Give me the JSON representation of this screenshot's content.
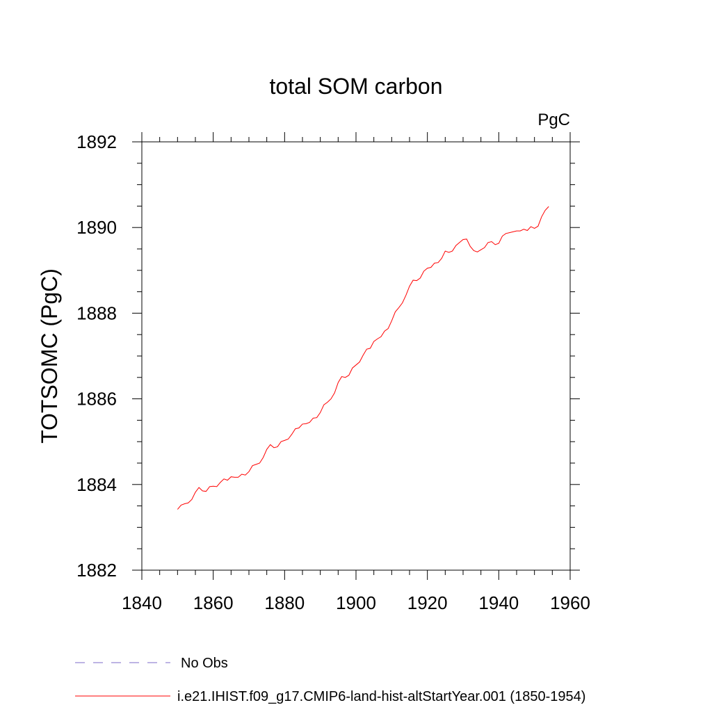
{
  "chart_data": {
    "type": "line",
    "title": "total SOM carbon",
    "units": "PgC",
    "ylabel": "TOTSOMC  (PgC)",
    "xlabel": "",
    "xlim": [
      1840,
      1960
    ],
    "ylim": [
      1882,
      1892
    ],
    "x_ticks": [
      1840,
      1860,
      1880,
      1900,
      1920,
      1940,
      1960
    ],
    "y_ticks": [
      1882,
      1884,
      1886,
      1888,
      1890,
      1892
    ],
    "x_tick_labels": [
      "1840",
      "1860",
      "1880",
      "1900",
      "1920",
      "1940",
      "1960"
    ],
    "y_tick_labels": [
      "1882",
      "1884",
      "1886",
      "1888",
      "1890",
      "1892"
    ],
    "grid": false,
    "legend_position": "bottom-left",
    "series": [
      {
        "name": "No Obs",
        "color": "#7b68c8",
        "dash": "dashed",
        "x": [],
        "y": []
      },
      {
        "name": "i.e21.IHIST.f09_g17.CMIP6-land-hist-altStartYear.001 (1850-1954)",
        "color": "#ff0000",
        "dash": "solid",
        "x": [
          1850,
          1851,
          1852,
          1853,
          1854,
          1855,
          1856,
          1857,
          1858,
          1859,
          1860,
          1861,
          1862,
          1863,
          1864,
          1865,
          1866,
          1867,
          1868,
          1869,
          1870,
          1871,
          1872,
          1873,
          1874,
          1875,
          1876,
          1877,
          1878,
          1879,
          1880,
          1881,
          1882,
          1883,
          1884,
          1885,
          1886,
          1887,
          1888,
          1889,
          1890,
          1891,
          1892,
          1893,
          1894,
          1895,
          1896,
          1897,
          1898,
          1899,
          1900,
          1901,
          1902,
          1903,
          1904,
          1905,
          1906,
          1907,
          1908,
          1909,
          1910,
          1911,
          1912,
          1913,
          1914,
          1915,
          1916,
          1917,
          1918,
          1919,
          1920,
          1921,
          1922,
          1923,
          1924,
          1925,
          1926,
          1927,
          1928,
          1929,
          1930,
          1931,
          1932,
          1933,
          1934,
          1935,
          1936,
          1937,
          1938,
          1939,
          1940,
          1941,
          1942,
          1943,
          1944,
          1945,
          1946,
          1947,
          1948,
          1949,
          1950,
          1951,
          1952,
          1953,
          1954
        ],
        "y": [
          1883.42,
          1883.52,
          1883.55,
          1883.57,
          1883.65,
          1883.82,
          1883.93,
          1883.85,
          1883.84,
          1883.95,
          1883.96,
          1883.95,
          1884.05,
          1884.13,
          1884.1,
          1884.18,
          1884.17,
          1884.17,
          1884.24,
          1884.22,
          1884.3,
          1884.44,
          1884.47,
          1884.5,
          1884.63,
          1884.82,
          1884.93,
          1884.86,
          1884.88,
          1885.0,
          1885.03,
          1885.06,
          1885.17,
          1885.3,
          1885.32,
          1885.41,
          1885.42,
          1885.45,
          1885.55,
          1885.56,
          1885.68,
          1885.86,
          1885.92,
          1886.0,
          1886.14,
          1886.38,
          1886.52,
          1886.5,
          1886.55,
          1886.72,
          1886.79,
          1886.86,
          1887.02,
          1887.16,
          1887.18,
          1887.34,
          1887.4,
          1887.45,
          1887.58,
          1887.64,
          1887.82,
          1888.03,
          1888.13,
          1888.24,
          1888.42,
          1888.63,
          1888.77,
          1888.76,
          1888.82,
          1888.98,
          1889.05,
          1889.07,
          1889.17,
          1889.18,
          1889.28,
          1889.45,
          1889.42,
          1889.45,
          1889.58,
          1889.65,
          1889.72,
          1889.73,
          1889.56,
          1889.46,
          1889.43,
          1889.48,
          1889.53,
          1889.65,
          1889.67,
          1889.6,
          1889.63,
          1889.8,
          1889.86,
          1889.88,
          1889.9,
          1889.92,
          1889.92,
          1889.96,
          1889.93,
          1890.02,
          1889.98,
          1890.03,
          1890.25,
          1890.4,
          1890.49
        ]
      }
    ]
  }
}
